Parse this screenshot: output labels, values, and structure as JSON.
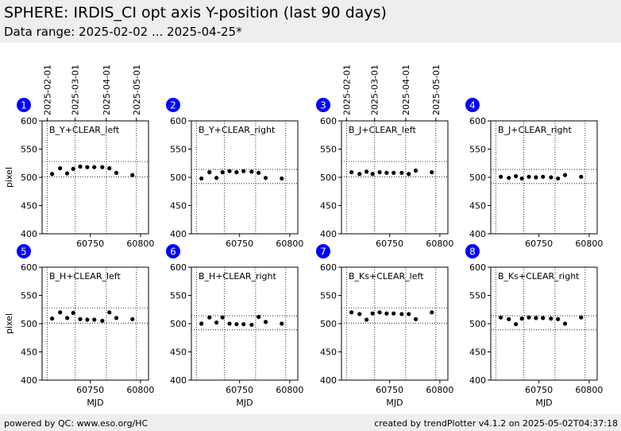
{
  "header": {
    "title": "SPHERE: IRDIS_CI opt axis Y-position (last 90 days)",
    "subtitle": "Data range: 2025-02-02 ... 2025-04-25*"
  },
  "footer": {
    "left": "powered by QC: www.eso.org/HC",
    "right": "created by trendPlotter v4.1.2 on 2025-05-02T04:37:18"
  },
  "colors": {
    "header_bg": "#eeeeee",
    "badge": "#0000ff",
    "points": "#000000"
  },
  "date_axis": {
    "labels": [
      "2025-02-01",
      "2025-03-01",
      "2025-04-01",
      "2025-05-01"
    ],
    "mjd": [
      60707,
      60735,
      60766,
      60796
    ]
  },
  "chart_data": [
    {
      "type": "scatter",
      "badge": "1",
      "label": "B_Y+CLEAR_left",
      "xlabel": "",
      "ylabel": "pixel",
      "xlim": [
        60702,
        60808
      ],
      "ylim": [
        400,
        600
      ],
      "yticks": [
        400,
        450,
        500,
        550,
        600
      ],
      "xticks": [
        60750,
        60800
      ],
      "ref_lines": [
        528,
        501
      ],
      "x": [
        60712,
        60720,
        60727,
        60733,
        60740,
        60747,
        60754,
        60762,
        60769,
        60776,
        60792
      ],
      "y": [
        506,
        516,
        507,
        515,
        519,
        518,
        518,
        518,
        516,
        508,
        504
      ]
    },
    {
      "type": "scatter",
      "badge": "2",
      "label": "B_Y+CLEAR_right",
      "xlabel": "",
      "ylabel": "",
      "xlim": [
        60702,
        60808
      ],
      "ylim": [
        400,
        600
      ],
      "yticks": [
        400,
        450,
        500,
        550,
        600
      ],
      "xticks": [
        60750,
        60800
      ],
      "ref_lines": [
        514,
        489
      ],
      "x": [
        60712,
        60720,
        60727,
        60733,
        60740,
        60747,
        60754,
        60762,
        60769,
        60776,
        60792
      ],
      "y": [
        498,
        509,
        499,
        509,
        511,
        509,
        511,
        510,
        508,
        499,
        498
      ]
    },
    {
      "type": "scatter",
      "badge": "3",
      "label": "B_J+CLEAR_left",
      "xlabel": "",
      "ylabel": "",
      "xlim": [
        60702,
        60808
      ],
      "ylim": [
        400,
        600
      ],
      "yticks": [
        400,
        450,
        500,
        550,
        600
      ],
      "xticks": [
        60750,
        60800
      ],
      "ref_lines": [
        528,
        501
      ],
      "x": [
        60712,
        60720,
        60727,
        60733,
        60740,
        60747,
        60754,
        60762,
        60769,
        60776,
        60792
      ],
      "y": [
        509,
        506,
        510,
        506,
        509,
        508,
        508,
        508,
        506,
        512,
        509
      ]
    },
    {
      "type": "scatter",
      "badge": "4",
      "label": "B_J+CLEAR_right",
      "xlabel": "",
      "ylabel": "",
      "xlim": [
        60702,
        60808
      ],
      "ylim": [
        400,
        600
      ],
      "yticks": [
        400,
        450,
        500,
        550,
        600
      ],
      "xticks": [
        60750,
        60800
      ],
      "ref_lines": [
        514,
        489
      ],
      "x": [
        60712,
        60720,
        60727,
        60733,
        60740,
        60747,
        60754,
        60762,
        60769,
        60776,
        60792
      ],
      "y": [
        501,
        499,
        502,
        498,
        501,
        500,
        501,
        500,
        498,
        504,
        501
      ]
    },
    {
      "type": "scatter",
      "badge": "5",
      "label": "B_H+CLEAR_left",
      "xlabel": "MJD",
      "ylabel": "pixel",
      "xlim": [
        60702,
        60808
      ],
      "ylim": [
        400,
        600
      ],
      "yticks": [
        400,
        450,
        500,
        550,
        600
      ],
      "xticks": [
        60750,
        60800
      ],
      "ref_lines": [
        528,
        501
      ],
      "x": [
        60712,
        60720,
        60727,
        60733,
        60740,
        60747,
        60754,
        60762,
        60769,
        60776,
        60792
      ],
      "y": [
        509,
        520,
        510,
        519,
        508,
        507,
        507,
        505,
        520,
        510,
        508
      ]
    },
    {
      "type": "scatter",
      "badge": "6",
      "label": "B_H+CLEAR_right",
      "xlabel": "MJD",
      "ylabel": "",
      "xlim": [
        60702,
        60808
      ],
      "ylim": [
        400,
        600
      ],
      "yticks": [
        400,
        450,
        500,
        550,
        600
      ],
      "xticks": [
        60750,
        60800
      ],
      "ref_lines": [
        514,
        489
      ],
      "x": [
        60712,
        60720,
        60727,
        60733,
        60740,
        60747,
        60754,
        60762,
        60769,
        60776,
        60792
      ],
      "y": [
        500,
        511,
        502,
        511,
        500,
        499,
        499,
        498,
        512,
        503,
        500
      ]
    },
    {
      "type": "scatter",
      "badge": "7",
      "label": "B_Ks+CLEAR_left",
      "xlabel": "MJD",
      "ylabel": "",
      "xlim": [
        60702,
        60808
      ],
      "ylim": [
        400,
        600
      ],
      "yticks": [
        400,
        450,
        500,
        550,
        600
      ],
      "xticks": [
        60750,
        60800
      ],
      "ref_lines": [
        528,
        501
      ],
      "x": [
        60712,
        60720,
        60727,
        60733,
        60740,
        60747,
        60754,
        60762,
        60769,
        60776,
        60792
      ],
      "y": [
        520,
        517,
        507,
        518,
        520,
        518,
        518,
        517,
        517,
        508,
        520
      ]
    },
    {
      "type": "scatter",
      "badge": "8",
      "label": "B_Ks+CLEAR_right",
      "xlabel": "MJD",
      "ylabel": "",
      "xlim": [
        60702,
        60808
      ],
      "ylim": [
        400,
        600
      ],
      "yticks": [
        400,
        450,
        500,
        550,
        600
      ],
      "xticks": [
        60750,
        60800
      ],
      "ref_lines": [
        514,
        489
      ],
      "x": [
        60712,
        60720,
        60727,
        60733,
        60740,
        60747,
        60754,
        60762,
        60769,
        60776,
        60792
      ],
      "y": [
        511,
        508,
        499,
        509,
        511,
        510,
        510,
        509,
        508,
        500,
        511
      ]
    }
  ]
}
